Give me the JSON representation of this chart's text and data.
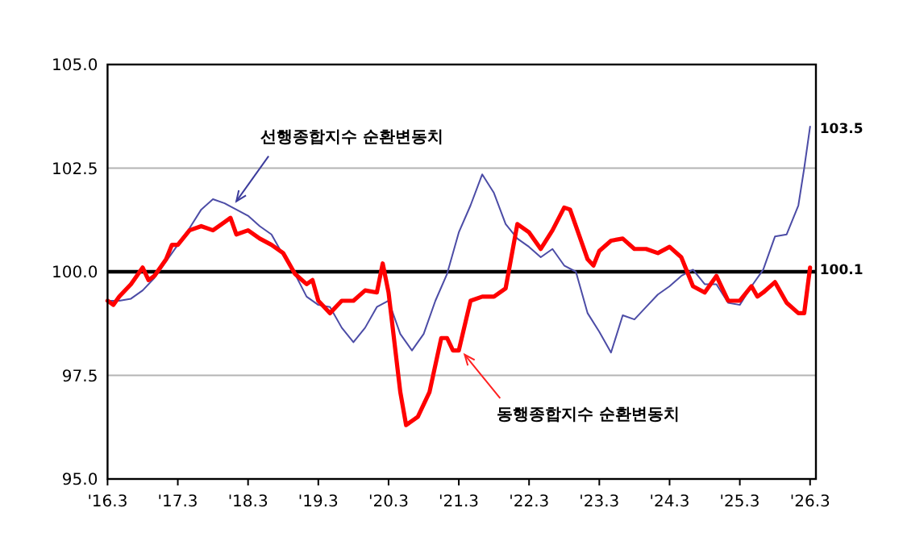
{
  "chart_data": {
    "type": "line",
    "xlim": [
      "2016-03",
      "2026-04"
    ],
    "xticks": [
      {
        "value": "2016-03",
        "label": "'16.3"
      },
      {
        "value": "2017-03",
        "label": "'17.3"
      },
      {
        "value": "2018-03",
        "label": "'18.3"
      },
      {
        "value": "2019-03",
        "label": "'19.3"
      },
      {
        "value": "2020-03",
        "label": "'20.3"
      },
      {
        "value": "2021-03",
        "label": "'21.3"
      },
      {
        "value": "2022-03",
        "label": "'22.3"
      },
      {
        "value": "2023-03",
        "label": "'23.3"
      },
      {
        "value": "2024-03",
        "label": "'24.3"
      },
      {
        "value": "2025-03",
        "label": "'25.3"
      },
      {
        "value": "2026-03",
        "label": "'26.3"
      }
    ],
    "ylim": [
      95,
      105
    ],
    "yticks": [
      {
        "value": 95,
        "label": "95.0"
      },
      {
        "value": 97.5,
        "label": "97.5"
      },
      {
        "value": 100,
        "label": "100.0"
      },
      {
        "value": 102.5,
        "label": "102.5"
      },
      {
        "value": 105,
        "label": "105.0"
      }
    ],
    "grid": "y",
    "ref_lines": [
      {
        "axis": "y",
        "value": 100,
        "color": "#000000"
      }
    ],
    "series": [
      {
        "color": "#4c4ca6",
        "x": [
          "2016-03",
          "2016-05",
          "2016-07",
          "2016-09",
          "2016-11",
          "2017-01",
          "2017-03",
          "2017-05",
          "2017-07",
          "2017-09",
          "2017-11",
          "2018-01",
          "2018-03",
          "2018-05",
          "2018-07",
          "2018-09",
          "2018-11",
          "2019-01",
          "2019-03",
          "2019-05",
          "2019-07",
          "2019-09",
          "2019-11",
          "2020-01",
          "2020-03",
          "2020-05",
          "2020-07",
          "2020-09",
          "2020-11",
          "2021-01",
          "2021-03",
          "2021-05",
          "2021-07",
          "2021-09",
          "2021-11",
          "2022-01",
          "2022-03",
          "2022-05",
          "2022-07",
          "2022-09",
          "2022-11",
          "2023-01",
          "2023-03",
          "2023-05",
          "2023-07",
          "2023-09",
          "2023-11",
          "2024-01",
          "2024-03",
          "2024-05",
          "2024-07",
          "2024-09",
          "2024-11",
          "2025-01",
          "2025-03",
          "2025-05",
          "2025-07",
          "2025-09",
          "2025-11",
          "2026-01",
          "2026-02",
          "2026-03"
        ],
        "values": [
          99.3,
          99.3,
          99.35,
          99.55,
          99.85,
          100.25,
          100.65,
          101.05,
          101.5,
          101.75,
          101.65,
          101.5,
          101.35,
          101.1,
          100.9,
          100.4,
          99.95,
          99.4,
          99.2,
          99.15,
          98.65,
          98.3,
          98.65,
          99.15,
          99.3,
          98.5,
          98.1,
          98.5,
          99.3,
          99.95,
          100.95,
          101.6,
          102.35,
          101.9,
          101.15,
          100.8,
          100.6,
          100.35,
          100.55,
          100.15,
          100.0,
          99.0,
          98.55,
          98.05,
          98.95,
          98.85,
          99.15,
          99.45,
          99.65,
          99.9,
          100.05,
          99.7,
          99.7,
          99.25,
          99.2,
          99.65,
          100.05,
          100.85,
          100.9,
          101.6,
          102.5,
          103.5
        ]
      },
      {
        "color": "#ff0000",
        "x": [
          "2016-03",
          "2016-04",
          "2016-05",
          "2016-07",
          "2016-09",
          "2016-10",
          "2016-11",
          "2017-01",
          "2017-02",
          "2017-03",
          "2017-05",
          "2017-07",
          "2017-09",
          "2017-11",
          "2017-12",
          "2018-01",
          "2018-03",
          "2018-05",
          "2018-07",
          "2018-09",
          "2018-11",
          "2019-01",
          "2019-02",
          "2019-03",
          "2019-05",
          "2019-07",
          "2019-09",
          "2019-11",
          "2020-01",
          "2020-02",
          "2020-03",
          "2020-05",
          "2020-06",
          "2020-08",
          "2020-10",
          "2020-12",
          "2021-01",
          "2021-02",
          "2021-03",
          "2021-05",
          "2021-07",
          "2021-09",
          "2021-11",
          "2022-01",
          "2022-03",
          "2022-05",
          "2022-07",
          "2022-09",
          "2022-10",
          "2022-11",
          "2023-01",
          "2023-02",
          "2023-03",
          "2023-05",
          "2023-07",
          "2023-09",
          "2023-11",
          "2024-01",
          "2024-03",
          "2024-05",
          "2024-07",
          "2024-09",
          "2024-11",
          "2025-01",
          "2025-03",
          "2025-05",
          "2025-06",
          "2025-07",
          "2025-09",
          "2025-11",
          "2026-01",
          "2026-02",
          "2026-03"
        ],
        "values": [
          99.3,
          99.2,
          99.4,
          99.7,
          100.1,
          99.8,
          99.9,
          100.3,
          100.65,
          100.65,
          101.0,
          101.1,
          101.0,
          101.2,
          101.3,
          100.9,
          101.0,
          100.8,
          100.65,
          100.45,
          99.95,
          99.7,
          99.8,
          99.3,
          99.0,
          99.3,
          99.3,
          99.55,
          99.5,
          100.2,
          99.5,
          97.1,
          96.3,
          96.5,
          97.1,
          98.4,
          98.4,
          98.1,
          98.1,
          99.3,
          99.4,
          99.4,
          99.6,
          101.15,
          100.95,
          100.55,
          101.0,
          101.55,
          101.5,
          101.1,
          100.3,
          100.15,
          100.5,
          100.75,
          100.8,
          100.55,
          100.55,
          100.45,
          100.6,
          100.35,
          99.65,
          99.5,
          99.9,
          99.3,
          99.3,
          99.65,
          99.4,
          99.5,
          99.75,
          99.25,
          99.0,
          99.0,
          100.1
        ]
      }
    ],
    "annotations": [
      {
        "text": "선행종합지수 순환변동치",
        "x": "2018-01",
        "y": 101.7
      },
      {
        "text": "동행종합지수 순환변동치",
        "x": "2021-04",
        "y": 98.0
      },
      {
        "text": "103.5",
        "x": "2026-03",
        "y": 103.5
      },
      {
        "text": "100.1",
        "x": "2026-03",
        "y": 100.1
      }
    ]
  }
}
